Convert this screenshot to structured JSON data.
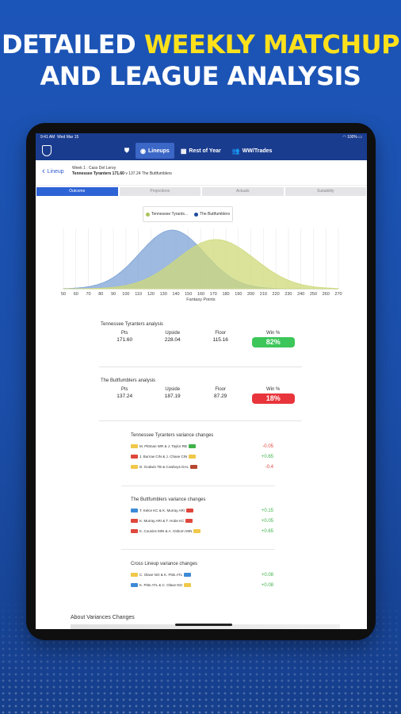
{
  "headline": {
    "line1_white": "DETAILED ",
    "line1_yellow": "WEEKLY MATCHUP",
    "line2": "AND LEAGUE ANALYSIS"
  },
  "status": {
    "time": "9:41 AM",
    "date": "Wed Mar 15",
    "battery": "100%"
  },
  "nav": {
    "lineups": "Lineups",
    "rest_of_year": "Rest of Year",
    "ww_trades": "WW/Trades"
  },
  "subheader": {
    "back_label": "Lineup",
    "week": "Week 1 : Cass Del Leroy",
    "team_a": "Tennessee Tyranters  171.60",
    "vs": "v",
    "team_b": "137.24 The Buttfumblers"
  },
  "tabs": [
    "Outcome",
    "Projections",
    "Actuals",
    "Suitability"
  ],
  "legend": [
    {
      "name": "Tennessee Tyrants...",
      "color": "#a9c35a"
    },
    {
      "name": "The Buttfumblers",
      "color": "#1d4a9e"
    }
  ],
  "chart_data": {
    "type": "area",
    "xlabel": "Fantasy Points",
    "xlim": [
      50,
      270
    ],
    "x_ticks": [
      50,
      60,
      70,
      80,
      90,
      100,
      110,
      120,
      130,
      140,
      150,
      160,
      170,
      180,
      190,
      200,
      210,
      220,
      230,
      240,
      250,
      260,
      270
    ],
    "series": [
      {
        "name": "The Buttfumblers",
        "mean": 137,
        "sd": 26,
        "color": "#7ea3d6"
      },
      {
        "name": "Tennessee Tyrants...",
        "mean": 172,
        "sd": 31,
        "color": "#cfd97a"
      }
    ]
  },
  "analysis_a": {
    "title": "Tennessee Tyranters analysis",
    "headers": [
      "Pts",
      "Upside",
      "Floor",
      "Win %"
    ],
    "pts": "171.60",
    "upside": "228.04",
    "floor": "115.16",
    "win": "82%",
    "win_color": "#3dc65a"
  },
  "analysis_b": {
    "title": "The Buttfumblers analysis",
    "headers": [
      "Pts",
      "Upside",
      "Floor",
      "Win %"
    ],
    "pts": "137.24",
    "upside": "187.19",
    "floor": "87.29",
    "win": "18%",
    "win_color": "#e8353b"
  },
  "variance_a": {
    "title": "Tennessee Tyranters variance changes",
    "rows": [
      {
        "text": "M. Pittman  WR  &    J. Taylor  RB",
        "delta": "-0.05",
        "c1": "#f0c84a",
        "c2": "#3fb24a"
      },
      {
        "text": "J. Burrow  CIN  &    J. Chase  CIN",
        "delta": "+0.65",
        "c1": "#e0473c",
        "c2": "#f0c84a"
      },
      {
        "text": "D. Godwin  TB  &    Cowboys  DAL",
        "delta": "-0.4",
        "c1": "#f0c84a",
        "c2": "#b5472f"
      }
    ]
  },
  "variance_b": {
    "title": "The Buttfumblers variance changes",
    "rows": [
      {
        "text": "T. Kelce  KC  &    K. Murray  ARI",
        "delta": "+0.15",
        "c1": "#3d8ad6",
        "c2": "#e0473c"
      },
      {
        "text": "K. Murray  ARI  &    T. Hobe  KC",
        "delta": "+0.05",
        "c1": "#e0473c",
        "c2": "#e0473c"
      },
      {
        "text": "K. Cousins  MIN  &    A. Osborn  MIN",
        "delta": "+0.65",
        "c1": "#e0473c",
        "c2": "#f0c84a"
      }
    ]
  },
  "variance_c": {
    "title": "Cross Lineup variance changes",
    "rows": [
      {
        "text": "C. Olave  NO  &    K. Pitts  ATL",
        "delta": "+0.08",
        "c1": "#f0c84a",
        "c2": "#3d8ad6"
      },
      {
        "text": "K. Pitts  ATL  &    C. Olave  NO",
        "delta": "+0.08",
        "c1": "#3d8ad6",
        "c2": "#f0c84a"
      }
    ]
  },
  "about": {
    "title": "About Variances Changes"
  }
}
